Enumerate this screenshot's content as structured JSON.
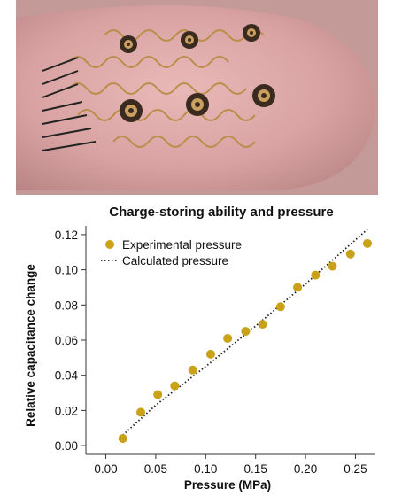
{
  "colors": {
    "experimental": "#c9a21a",
    "calculated": "#222222",
    "axis": "#333333"
  },
  "photo": {
    "subject": "stretchable pressure sensor array on fingertip"
  },
  "chart_data": {
    "type": "scatter",
    "title": "Charge-storing ability and pressure",
    "xlabel": "Pressure (MPa)",
    "ylabel": "Relative capacitance change",
    "xlim": [
      -0.02,
      0.27
    ],
    "ylim": [
      -0.005,
      0.125
    ],
    "xticks": [
      0.0,
      0.05,
      0.1,
      0.15,
      0.2,
      0.25
    ],
    "xtick_labels": [
      "0.00",
      "0.05",
      "0.10",
      "0.15",
      "0.20",
      "0.25"
    ],
    "yticks": [
      0.0,
      0.02,
      0.04,
      0.06,
      0.08,
      0.1,
      0.12
    ],
    "ytick_labels": [
      "0.00",
      "0.02",
      "0.04",
      "0.06",
      "0.08",
      "0.10",
      "0.12"
    ],
    "grid": false,
    "legend_position": "top-left",
    "series": [
      {
        "name": "Experimental pressure",
        "kind": "points",
        "x": [
          0.017,
          0.035,
          0.052,
          0.069,
          0.087,
          0.105,
          0.122,
          0.14,
          0.157,
          0.175,
          0.192,
          0.21,
          0.227,
          0.245,
          0.262
        ],
        "y": [
          0.004,
          0.019,
          0.029,
          0.034,
          0.043,
          0.052,
          0.061,
          0.065,
          0.069,
          0.079,
          0.09,
          0.097,
          0.102,
          0.109,
          0.115
        ]
      },
      {
        "name": "Calculated pressure",
        "kind": "dotted-line",
        "x": [
          0.017,
          0.05,
          0.1,
          0.15,
          0.2,
          0.25,
          0.262
        ],
        "y": [
          0.006,
          0.023,
          0.045,
          0.068,
          0.092,
          0.117,
          0.123
        ]
      }
    ]
  }
}
